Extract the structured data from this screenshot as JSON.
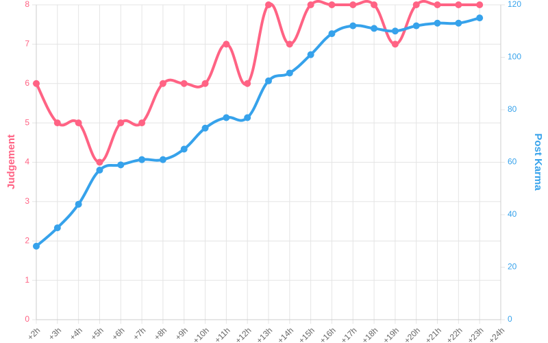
{
  "chart_data": {
    "type": "line",
    "categories": [
      "+2h",
      "+3h",
      "+4h",
      "+5h",
      "+6h",
      "+7h",
      "+8h",
      "+9h",
      "+10h",
      "+11h",
      "+12h",
      "+13h",
      "+14h",
      "+15h",
      "+16h",
      "+17h",
      "+18h",
      "+19h",
      "+20h",
      "+21h",
      "+22h",
      "+23h",
      "+24h"
    ],
    "series": [
      {
        "name": "Judgement",
        "color": "#ff6384",
        "axis": "y",
        "values": [
          6,
          5,
          5,
          4,
          5,
          5,
          6,
          6,
          6,
          7,
          6,
          8,
          7,
          8,
          8,
          8,
          8,
          7,
          8,
          8,
          8,
          8,
          null
        ]
      },
      {
        "name": "Post Karma",
        "color": "#36a2eb",
        "axis": "y2",
        "values": [
          28,
          35,
          44,
          57,
          59,
          61,
          61,
          65,
          73,
          77,
          77,
          91,
          94,
          101,
          109,
          112,
          111,
          110,
          112,
          113,
          113,
          115,
          null
        ]
      }
    ],
    "ylabel": "Judgement",
    "y2label": "Post Karma",
    "ylim": [
      0,
      8
    ],
    "yticks": [
      0,
      1,
      2,
      3,
      4,
      5,
      6,
      7,
      8
    ],
    "y2lim": [
      0,
      120
    ],
    "y2ticks": [
      0,
      20,
      40,
      60,
      80,
      100,
      120
    ],
    "grid": true
  }
}
